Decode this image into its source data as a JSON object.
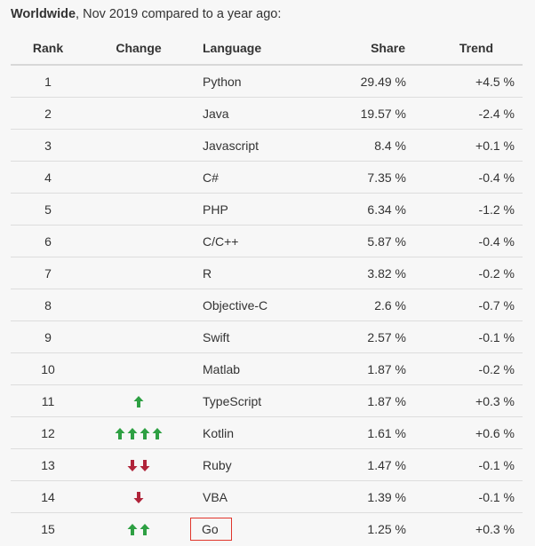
{
  "caption": {
    "bold": "Worldwide",
    "rest": ", Nov 2019 compared to a year ago:"
  },
  "headers": {
    "rank": "Rank",
    "change": "Change",
    "language": "Language",
    "share": "Share",
    "trend": "Trend"
  },
  "colors": {
    "up_arrow": "#2ea043",
    "down_arrow": "#b0243a",
    "highlight_box": "#e0352b"
  },
  "rows": [
    {
      "rank": "1",
      "change": {
        "direction": "none",
        "count": 0
      },
      "language": "Python",
      "share": "29.49 %",
      "trend": "+4.5 %"
    },
    {
      "rank": "2",
      "change": {
        "direction": "none",
        "count": 0
      },
      "language": "Java",
      "share": "19.57 %",
      "trend": "-2.4 %"
    },
    {
      "rank": "3",
      "change": {
        "direction": "none",
        "count": 0
      },
      "language": "Javascript",
      "share": "8.4 %",
      "trend": "+0.1 %"
    },
    {
      "rank": "4",
      "change": {
        "direction": "none",
        "count": 0
      },
      "language": "C#",
      "share": "7.35 %",
      "trend": "-0.4 %"
    },
    {
      "rank": "5",
      "change": {
        "direction": "none",
        "count": 0
      },
      "language": "PHP",
      "share": "6.34 %",
      "trend": "-1.2 %"
    },
    {
      "rank": "6",
      "change": {
        "direction": "none",
        "count": 0
      },
      "language": "C/C++",
      "share": "5.87 %",
      "trend": "-0.4 %"
    },
    {
      "rank": "7",
      "change": {
        "direction": "none",
        "count": 0
      },
      "language": "R",
      "share": "3.82 %",
      "trend": "-0.2 %"
    },
    {
      "rank": "8",
      "change": {
        "direction": "none",
        "count": 0
      },
      "language": "Objective-C",
      "share": "2.6 %",
      "trend": "-0.7 %"
    },
    {
      "rank": "9",
      "change": {
        "direction": "none",
        "count": 0
      },
      "language": "Swift",
      "share": "2.57 %",
      "trend": "-0.1 %"
    },
    {
      "rank": "10",
      "change": {
        "direction": "none",
        "count": 0
      },
      "language": "Matlab",
      "share": "1.87 %",
      "trend": "-0.2 %"
    },
    {
      "rank": "11",
      "change": {
        "direction": "up",
        "count": 1
      },
      "language": "TypeScript",
      "share": "1.87 %",
      "trend": "+0.3 %"
    },
    {
      "rank": "12",
      "change": {
        "direction": "up",
        "count": 4
      },
      "language": "Kotlin",
      "share": "1.61 %",
      "trend": "+0.6 %"
    },
    {
      "rank": "13",
      "change": {
        "direction": "down",
        "count": 2
      },
      "language": "Ruby",
      "share": "1.47 %",
      "trend": "-0.1 %"
    },
    {
      "rank": "14",
      "change": {
        "direction": "down",
        "count": 1
      },
      "language": "VBA",
      "share": "1.39 %",
      "trend": "-0.1 %"
    },
    {
      "rank": "15",
      "change": {
        "direction": "up",
        "count": 2
      },
      "language": "Go",
      "share": "1.25 %",
      "trend": "+0.3 %",
      "highlighted": true
    }
  ]
}
